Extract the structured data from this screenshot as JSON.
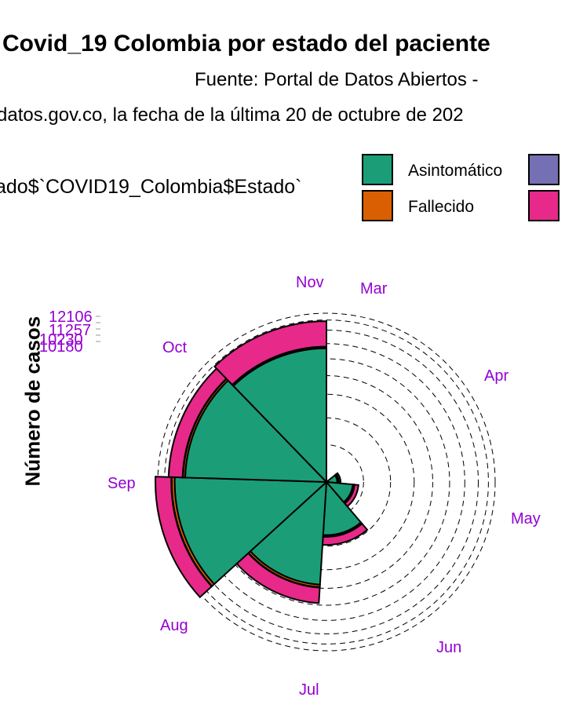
{
  "title": "Covid_19 Colombia por estado del paciente",
  "caption_line1": "Fuente: Portal de Datos Abiertos -",
  "caption_line2": "datos.gov.co, la fecha de la última 20 de octubre de 202",
  "legend": {
    "title": "ado$`COVID19_Colombia$Estado`",
    "entries": [
      {
        "label": "Asintomático",
        "color": "#1b9e77"
      },
      {
        "label": "Fallecido",
        "color": "#d95f02"
      },
      {
        "label": "",
        "color": "#7570b3"
      },
      {
        "label": "",
        "color": "#e7298a"
      }
    ]
  },
  "y_axis_label": "Número de casos",
  "y_tick_labels": [
    "12106",
    "11257",
    "10230",
    "10180"
  ],
  "month_labels": [
    "Nov",
    "Mar",
    "Apr",
    "May",
    "Jun",
    "Jul",
    "Aug",
    "Sep",
    "Oct"
  ],
  "colors": {
    "label_purple": "#9400d3",
    "asintomatico": "#1b9e77",
    "fallecido": "#d95f02",
    "third": "#7570b3",
    "fourth": "#e7298a"
  },
  "chart_data": {
    "type": "bar",
    "coord": "polar",
    "title": "Covid_19 Colombia por estado del paciente",
    "xlabel": "",
    "ylabel": "Número de casos",
    "categories": [
      "Mar",
      "Apr",
      "May",
      "Jun",
      "Jul",
      "Aug",
      "Sep",
      "Oct"
    ],
    "series": [
      {
        "name": "Asintomático",
        "values": [
          0,
          50,
          300,
          1200,
          4500,
          9800,
          8500,
          7600
        ]
      },
      {
        "name": "Fallecido",
        "values": [
          0,
          10,
          30,
          60,
          220,
          380,
          260,
          150
        ]
      },
      {
        "name": "",
        "values": [
          0,
          5,
          10,
          20,
          40,
          60,
          50,
          40
        ]
      },
      {
        "name": "",
        "values": [
          0,
          20,
          100,
          400,
          1500,
          2200,
          1800,
          3200
        ]
      }
    ],
    "ylim": [
      0,
      12106
    ]
  }
}
